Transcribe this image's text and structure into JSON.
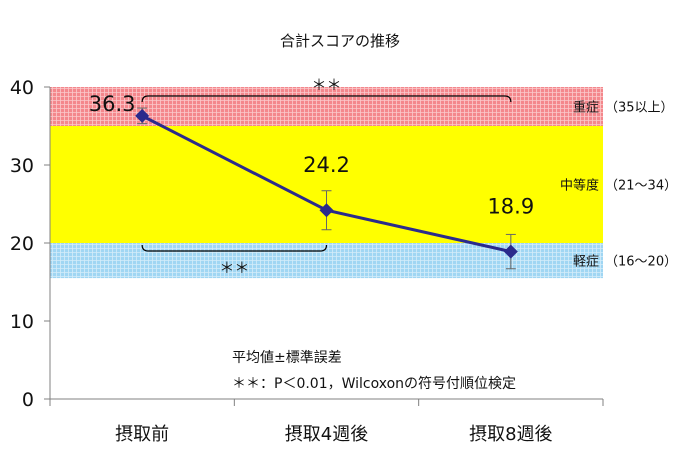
{
  "chart_data": {
    "type": "line",
    "title": "合計スコアの推移",
    "categories": [
      "摂取前",
      "摂取4週後",
      "摂取8週後"
    ],
    "series": [
      {
        "values": [
          36.3,
          24.2,
          18.9
        ],
        "error": [
          1.0,
          2.5,
          2.2
        ],
        "labels": [
          "36.3",
          "24.2",
          "18.9"
        ]
      }
    ],
    "ylim": [
      0,
      40
    ],
    "yticks": [
      0,
      10,
      20,
      30,
      40
    ],
    "ytick_labels": [
      "0",
      "10",
      "20",
      "30",
      "40"
    ],
    "bands": [
      {
        "from": 35,
        "to": 40,
        "label": "重症",
        "range": "（35以上）",
        "color": "#f4878c",
        "hatch": true
      },
      {
        "from": 20,
        "to": 35,
        "label": "中等度",
        "range": "（21～34）",
        "color": "#ffff00",
        "hatch": false
      },
      {
        "from": 15.5,
        "to": 20,
        "label": "軽症",
        "range": "（16～20）",
        "color": "#a0d6f3",
        "hatch": true
      }
    ],
    "significance": [
      {
        "between": [
          0,
          2
        ],
        "position": "top",
        "label": "＊＊"
      },
      {
        "between": [
          0,
          1
        ],
        "position": "bottom",
        "label": "＊＊"
      }
    ],
    "notes": [
      "平均値±標準誤差",
      "＊＊：P＜0.01，Wilcoxonの符号付順位検定"
    ],
    "colors": {
      "line": "#2b2b8c",
      "axis": "#808080"
    }
  }
}
